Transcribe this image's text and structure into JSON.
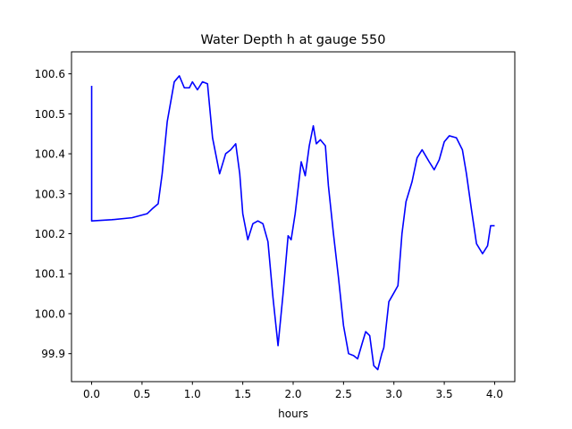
{
  "chart_data": {
    "type": "line",
    "title": "Water Depth h at gauge 550",
    "xlabel": "hours",
    "ylabel": "",
    "xlim": [
      -0.2,
      4.2
    ],
    "ylim": [
      99.83,
      100.655
    ],
    "xticks": [
      0.0,
      0.5,
      1.0,
      1.5,
      2.0,
      2.5,
      3.0,
      3.5,
      4.0
    ],
    "xtick_labels": [
      "0.0",
      "0.5",
      "1.0",
      "1.5",
      "2.0",
      "2.5",
      "3.0",
      "3.5",
      "4.0"
    ],
    "yticks": [
      99.9,
      100.0,
      100.1,
      100.2,
      100.3,
      100.4,
      100.5,
      100.6
    ],
    "ytick_labels": [
      "99.9",
      "100.0",
      "100.1",
      "100.2",
      "100.3",
      "100.4",
      "100.5",
      "100.6"
    ],
    "grid": false,
    "series": [
      {
        "color": "#0000ff",
        "x": [
          0.0,
          0.0,
          0.0,
          0.2,
          0.4,
          0.55,
          0.6,
          0.66,
          0.7,
          0.75,
          0.82,
          0.87,
          0.92,
          0.97,
          1.0,
          1.05,
          1.1,
          1.15,
          1.2,
          1.27,
          1.33,
          1.38,
          1.43,
          1.47,
          1.5,
          1.55,
          1.6,
          1.65,
          1.7,
          1.75,
          1.8,
          1.85,
          1.9,
          1.95,
          1.98,
          2.02,
          2.08,
          2.12,
          2.16,
          2.2,
          2.23,
          2.27,
          2.32,
          2.35,
          2.4,
          2.45,
          2.5,
          2.55,
          2.6,
          2.64,
          2.69,
          2.72,
          2.76,
          2.8,
          2.84,
          2.88,
          2.9,
          2.95,
          3.0,
          3.04,
          3.08,
          3.12,
          3.18,
          3.23,
          3.28,
          3.35,
          3.4,
          3.45,
          3.5,
          3.55,
          3.62,
          3.68,
          3.72,
          3.77,
          3.82,
          3.88,
          3.93,
          3.96,
          4.0
        ],
        "values": [
          100.57,
          100.232,
          100.232,
          100.235,
          100.24,
          100.25,
          100.262,
          100.275,
          100.35,
          100.48,
          100.58,
          100.595,
          100.565,
          100.565,
          100.58,
          100.56,
          100.58,
          100.575,
          100.44,
          100.35,
          100.4,
          100.41,
          100.425,
          100.35,
          100.25,
          100.185,
          100.225,
          100.232,
          100.225,
          100.18,
          100.04,
          99.92,
          100.05,
          100.195,
          100.185,
          100.25,
          100.38,
          100.345,
          100.42,
          100.47,
          100.425,
          100.435,
          100.42,
          100.32,
          100.2,
          100.09,
          99.97,
          99.9,
          99.895,
          99.887,
          99.93,
          99.955,
          99.945,
          99.87,
          99.86,
          99.9,
          99.915,
          100.03,
          100.052,
          100.07,
          100.2,
          100.28,
          100.33,
          100.39,
          100.41,
          100.38,
          100.36,
          100.385,
          100.43,
          100.445,
          100.44,
          100.41,
          100.35,
          100.26,
          100.175,
          100.15,
          100.17,
          100.22,
          100.22
        ]
      }
    ]
  }
}
